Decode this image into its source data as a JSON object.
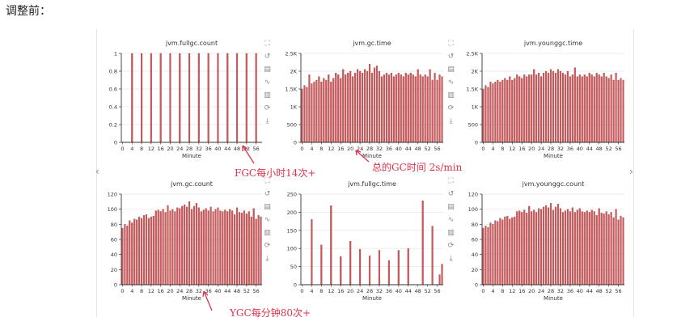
{
  "heading": "调整前：",
  "annotations": {
    "fgc": "FGC每小时14次+",
    "gc_time": "总的GC时间 2s/min",
    "ygc": "YGC每分钟80次+"
  },
  "toolbox_icons": [
    "zoom-icon",
    "undo-zoom-icon",
    "data-view-icon",
    "line-icon",
    "bar-icon",
    "restore-icon",
    "download-icon"
  ],
  "colors": {
    "bar": "#c9595a",
    "bar_edge": "#a84446",
    "axis": "#333333",
    "grid": "#e6e6e6",
    "annotation": "#e0314a"
  },
  "chart_data": [
    {
      "type": "bar",
      "title": "jvm.fullgc.count",
      "xlabel": "Minute",
      "ylim": [
        0,
        1
      ],
      "yticks": [
        "0",
        "0.2",
        "0.4",
        "0.6",
        "0.8",
        "1"
      ],
      "xticks": [
        "0",
        "4",
        "8",
        "12",
        "16",
        "20",
        "24",
        "28",
        "32",
        "36",
        "40",
        "44",
        "48",
        "52",
        "56"
      ],
      "x": [
        4,
        8,
        12,
        16,
        20,
        24,
        28,
        32,
        36,
        40,
        44,
        48,
        52,
        56
      ],
      "values": [
        1,
        1,
        1,
        1,
        1,
        1,
        1,
        1,
        1,
        1,
        1,
        1,
        1,
        1
      ]
    },
    {
      "type": "bar",
      "title": "jvm.gc.time",
      "xlabel": "Minute",
      "ylim": [
        0,
        2500
      ],
      "yticks": [
        "0",
        "500",
        "1K",
        "1.5K",
        "2K",
        "2.5K"
      ],
      "xticks": [
        "0",
        "4",
        "8",
        "12",
        "16",
        "20",
        "24",
        "28",
        "32",
        "36",
        "40",
        "44",
        "48",
        "52",
        "56"
      ],
      "x": [
        0,
        1,
        2,
        3,
        4,
        5,
        6,
        7,
        8,
        9,
        10,
        11,
        12,
        13,
        14,
        15,
        16,
        17,
        18,
        19,
        20,
        21,
        22,
        23,
        24,
        25,
        26,
        27,
        28,
        29,
        30,
        31,
        32,
        33,
        34,
        35,
        36,
        37,
        38,
        39,
        40,
        41,
        42,
        43,
        44,
        45,
        46,
        47,
        48,
        49,
        50,
        51,
        52,
        53,
        54,
        55,
        56,
        57,
        58
      ],
      "values": [
        1500,
        1600,
        1550,
        1900,
        1650,
        1700,
        1750,
        1850,
        1700,
        1800,
        1750,
        1900,
        1700,
        1800,
        1950,
        1900,
        1800,
        2050,
        1900,
        1950,
        2000,
        1850,
        1950,
        2050,
        2000,
        1950,
        2050,
        2000,
        2200,
        1950,
        2100,
        2150,
        2000,
        1850,
        1900,
        1950,
        1900,
        1950,
        1850,
        1900,
        1950,
        1900,
        1850,
        1950,
        1900,
        1950,
        1900,
        1850,
        2050,
        1900,
        1850,
        1900,
        1850,
        2050,
        1750,
        1950,
        1750,
        1900,
        1850
      ]
    },
    {
      "type": "bar",
      "title": "jvm.younggc.time",
      "xlabel": "Minute",
      "ylim": [
        0,
        2500
      ],
      "yticks": [
        "0",
        "500",
        "1K",
        "1.5K",
        "2K",
        "2.5K"
      ],
      "xticks": [
        "0",
        "4",
        "8",
        "12",
        "16",
        "20",
        "24",
        "28",
        "32",
        "36",
        "40",
        "44",
        "48",
        "52",
        "56"
      ],
      "x": [
        0,
        1,
        2,
        3,
        4,
        5,
        6,
        7,
        8,
        9,
        10,
        11,
        12,
        13,
        14,
        15,
        16,
        17,
        18,
        19,
        20,
        21,
        22,
        23,
        24,
        25,
        26,
        27,
        28,
        29,
        30,
        31,
        32,
        33,
        34,
        35,
        36,
        37,
        38,
        39,
        40,
        41,
        42,
        43,
        44,
        45,
        46,
        47,
        48,
        49,
        50,
        51,
        52,
        53,
        54,
        55,
        56,
        57,
        58
      ],
      "values": [
        1500,
        1600,
        1550,
        1700,
        1650,
        1700,
        1750,
        1700,
        1750,
        1800,
        1750,
        1850,
        1750,
        1800,
        1900,
        1850,
        1800,
        1900,
        1850,
        1900,
        1900,
        2050,
        1900,
        1950,
        1850,
        1950,
        2000,
        1950,
        2050,
        2000,
        1950,
        2050,
        2000,
        1950,
        1900,
        2000,
        1850,
        1900,
        2100,
        1850,
        1900,
        1850,
        1900,
        1850,
        1950,
        1900,
        1850,
        1950,
        1900,
        1850,
        1950,
        1850,
        1800,
        1900,
        1750,
        1950,
        1750,
        1800,
        1750
      ]
    },
    {
      "type": "bar",
      "title": "jvm.gc.count",
      "xlabel": "Minute",
      "ylim": [
        0,
        120
      ],
      "yticks": [
        "0",
        "20",
        "40",
        "60",
        "80",
        "100",
        "120"
      ],
      "xticks": [
        "0",
        "4",
        "8",
        "12",
        "16",
        "20",
        "24",
        "28",
        "32",
        "36",
        "40",
        "44",
        "48",
        "52",
        "56"
      ],
      "x": [
        0,
        1,
        2,
        3,
        4,
        5,
        6,
        7,
        8,
        9,
        10,
        11,
        12,
        13,
        14,
        15,
        16,
        17,
        18,
        19,
        20,
        21,
        22,
        23,
        24,
        25,
        26,
        27,
        28,
        29,
        30,
        31,
        32,
        33,
        34,
        35,
        36,
        37,
        38,
        39,
        40,
        41,
        42,
        43,
        44,
        45,
        46,
        47,
        48,
        49,
        50,
        51,
        52,
        53,
        54,
        55,
        56,
        57,
        58
      ],
      "values": [
        75,
        80,
        78,
        85,
        82,
        87,
        86,
        90,
        88,
        92,
        93,
        88,
        90,
        91,
        98,
        99,
        97,
        100,
        96,
        105,
        98,
        100,
        97,
        102,
        101,
        104,
        106,
        103,
        110,
        100,
        104,
        108,
        102,
        97,
        99,
        101,
        98,
        103,
        97,
        100,
        102,
        98,
        97,
        99,
        97,
        100,
        98,
        93,
        102,
        96,
        95,
        98,
        94,
        97,
        90,
        101,
        87,
        92,
        90
      ]
    },
    {
      "type": "bar",
      "title": "jvm.fullgc.time",
      "xlabel": "Minute",
      "ylim": [
        0,
        250
      ],
      "yticks": [
        "0",
        "50",
        "100",
        "150",
        "200",
        "250"
      ],
      "xticks": [
        "0",
        "4",
        "8",
        "12",
        "16",
        "20",
        "24",
        "28",
        "32",
        "36",
        "40",
        "44",
        "48",
        "52",
        "56"
      ],
      "x": [
        4,
        8,
        12,
        16,
        20,
        24,
        28,
        32,
        36,
        40,
        44,
        50,
        54,
        57,
        58
      ],
      "values": [
        180,
        110,
        218,
        78,
        120,
        98,
        80,
        95,
        67,
        95,
        100,
        232,
        162,
        28,
        57
      ]
    },
    {
      "type": "bar",
      "title": "jvm.younggc.count",
      "xlabel": "Minute",
      "ylim": [
        0,
        120
      ],
      "yticks": [
        "0",
        "20",
        "40",
        "60",
        "80",
        "100",
        "120"
      ],
      "xticks": [
        "0",
        "4",
        "8",
        "12",
        "16",
        "20",
        "24",
        "28",
        "32",
        "36",
        "40",
        "44",
        "48",
        "52",
        "56"
      ],
      "x": [
        0,
        1,
        2,
        3,
        4,
        5,
        6,
        7,
        8,
        9,
        10,
        11,
        12,
        13,
        14,
        15,
        16,
        17,
        18,
        19,
        20,
        21,
        22,
        23,
        24,
        25,
        26,
        27,
        28,
        29,
        30,
        31,
        32,
        33,
        34,
        35,
        36,
        37,
        38,
        39,
        40,
        41,
        42,
        43,
        44,
        45,
        46,
        47,
        48,
        49,
        50,
        51,
        52,
        53,
        54,
        55,
        56,
        57,
        58
      ],
      "values": [
        75,
        78,
        76,
        82,
        80,
        85,
        84,
        88,
        86,
        90,
        91,
        87,
        89,
        90,
        97,
        98,
        96,
        99,
        95,
        104,
        97,
        99,
        96,
        101,
        100,
        103,
        105,
        102,
        108,
        99,
        103,
        107,
        101,
        96,
        98,
        100,
        97,
        102,
        96,
        99,
        101,
        97,
        96,
        98,
        96,
        99,
        97,
        92,
        101,
        95,
        94,
        97,
        93,
        96,
        89,
        100,
        86,
        91,
        89
      ]
    }
  ]
}
